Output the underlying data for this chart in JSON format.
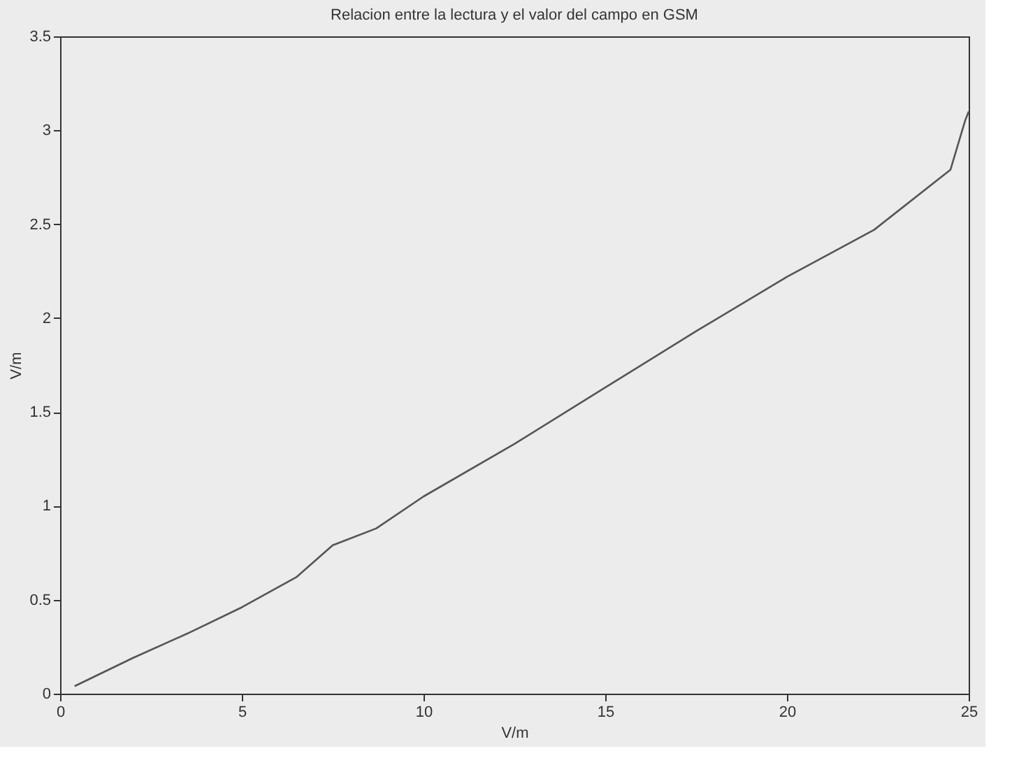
{
  "chart_data": {
    "type": "line",
    "title": "Relacion entre la lectura y el valor del campo en GSM",
    "xlabel": "V/m",
    "ylabel": "V/m",
    "x": [
      0.4,
      2.0,
      3.5,
      5.0,
      6.5,
      7.5,
      8.7,
      10.0,
      12.5,
      15.0,
      17.5,
      20.0,
      22.4,
      24.5,
      24.9,
      25.0
    ],
    "series": [
      {
        "color": "#555555",
        "values": [
          0.04,
          0.19,
          0.32,
          0.46,
          0.62,
          0.79,
          0.88,
          1.05,
          1.33,
          1.63,
          1.93,
          2.22,
          2.47,
          2.79,
          3.05,
          3.1
        ]
      }
    ],
    "xlim": [
      0,
      25
    ],
    "ylim": [
      0,
      3.5
    ],
    "xticks": [
      0,
      5,
      10,
      15,
      20,
      25
    ],
    "yticks": [
      0,
      0.5,
      1,
      1.5,
      2,
      2.5,
      3,
      3.5
    ],
    "grid": false,
    "line_style": "solid"
  }
}
